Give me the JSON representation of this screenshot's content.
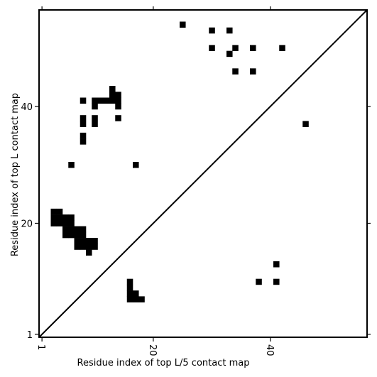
{
  "chart_data": {
    "type": "heatmap",
    "title": "",
    "xlabel": "Residue index of top L/5 contact map",
    "ylabel": "Residue index of top L contact map",
    "xlim": [
      0.5,
      56.5
    ],
    "ylim": [
      0.5,
      56.5
    ],
    "xticks": [
      1,
      20,
      40
    ],
    "yticks": [
      1,
      20,
      40
    ],
    "diagonal": true,
    "grid": false,
    "colors": {
      "contact": "#000000",
      "background": "#ffffff"
    },
    "upper_triangle": [
      [
        25,
        54
      ],
      [
        30,
        53
      ],
      [
        33,
        53
      ],
      [
        30,
        50
      ],
      [
        34,
        50
      ],
      [
        37,
        50
      ],
      [
        42,
        50
      ],
      [
        33,
        49
      ],
      [
        34,
        46
      ],
      [
        37,
        46
      ],
      [
        13,
        43
      ],
      [
        13,
        42
      ],
      [
        14,
        42
      ],
      [
        8,
        41
      ],
      [
        10,
        41
      ],
      [
        11,
        41
      ],
      [
        12,
        41
      ],
      [
        13,
        41
      ],
      [
        14,
        41
      ],
      [
        10,
        40
      ],
      [
        14,
        40
      ],
      [
        8,
        38
      ],
      [
        10,
        38
      ],
      [
        14,
        38
      ],
      [
        8,
        37
      ],
      [
        10,
        37
      ],
      [
        8,
        35
      ],
      [
        8,
        34
      ],
      [
        6,
        30
      ],
      [
        17,
        30
      ],
      [
        46,
        37
      ],
      [
        3,
        22
      ],
      [
        4,
        22
      ],
      [
        3,
        21
      ],
      [
        4,
        21
      ],
      [
        5,
        21
      ],
      [
        6,
        21
      ],
      [
        3,
        20
      ],
      [
        4,
        20
      ],
      [
        5,
        20
      ],
      [
        6,
        20
      ],
      [
        5,
        19
      ],
      [
        6,
        19
      ],
      [
        7,
        19
      ],
      [
        8,
        19
      ],
      [
        5,
        18
      ],
      [
        6,
        18
      ],
      [
        7,
        18
      ],
      [
        8,
        18
      ],
      [
        7,
        17
      ],
      [
        8,
        17
      ],
      [
        9,
        17
      ],
      [
        10,
        17
      ],
      [
        7,
        16
      ],
      [
        8,
        16
      ],
      [
        9,
        16
      ],
      [
        10,
        16
      ],
      [
        9,
        15
      ]
    ],
    "lower_triangle": [
      [
        41,
        13
      ],
      [
        38,
        10
      ],
      [
        41,
        10
      ],
      [
        16,
        10
      ],
      [
        16,
        9
      ],
      [
        16,
        8
      ],
      [
        17,
        8
      ],
      [
        16,
        7
      ],
      [
        17,
        7
      ],
      [
        18,
        7
      ]
    ]
  }
}
